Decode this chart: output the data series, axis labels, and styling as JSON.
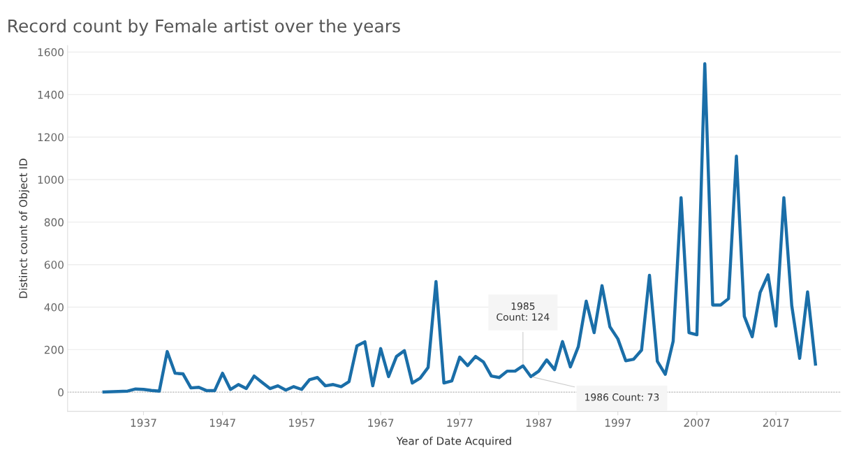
{
  "chart_data": {
    "type": "line",
    "title": "Record count by Female artist over the years",
    "xlabel": "Year of Date Acquired",
    "ylabel": "Distinct count of Object ID",
    "x": [
      1932,
      1935,
      1936,
      1937,
      1938,
      1939,
      1940,
      1941,
      1942,
      1943,
      1944,
      1945,
      1946,
      1947,
      1948,
      1949,
      1950,
      1951,
      1952,
      1953,
      1954,
      1955,
      1956,
      1957,
      1958,
      1959,
      1960,
      1961,
      1962,
      1963,
      1964,
      1965,
      1966,
      1967,
      1968,
      1969,
      1970,
      1971,
      1972,
      1973,
      1974,
      1975,
      1976,
      1977,
      1978,
      1979,
      1980,
      1981,
      1982,
      1983,
      1984,
      1985,
      1986,
      1987,
      1988,
      1989,
      1990,
      1991,
      1992,
      1993,
      1994,
      1995,
      1996,
      1997,
      1998,
      1999,
      2000,
      2001,
      2002,
      2003,
      2004,
      2005,
      2006,
      2007,
      2008,
      2009,
      2010,
      2011,
      2012,
      2013,
      2014,
      2015,
      2016,
      2017,
      2018,
      2019,
      2020,
      2021,
      2022
    ],
    "series": [
      {
        "color": "#1a6ea8",
        "values": [
          1,
          5,
          15,
          13,
          8,
          5,
          191,
          89,
          86,
          20,
          23,
          7,
          7,
          89,
          13,
          36,
          17,
          76,
          46,
          17,
          30,
          10,
          26,
          13,
          59,
          69,
          30,
          36,
          26,
          50,
          218,
          237,
          30,
          205,
          73,
          168,
          195,
          43,
          66,
          116,
          520,
          43,
          53,
          165,
          125,
          168,
          142,
          76,
          69,
          99,
          99,
          124,
          73,
          99,
          152,
          106,
          238,
          119,
          214,
          428,
          280,
          501,
          307,
          251,
          148,
          155,
          198,
          550,
          145,
          84,
          240,
          915,
          280,
          270,
          1545,
          410,
          410,
          440,
          1110,
          357,
          261,
          469,
          552,
          311,
          915,
          407,
          159,
          472,
          132
        ]
      }
    ],
    "xlim": [
      1927.4,
      2025.2
    ],
    "xticks": [
      1937,
      1947,
      1957,
      1967,
      1977,
      1987,
      1997,
      2007,
      2017
    ],
    "ylim": [
      -90,
      1630
    ],
    "yticks": [
      0,
      200,
      400,
      600,
      800,
      1000,
      1200,
      1400,
      1600
    ],
    "grid": "y",
    "marker": "none",
    "line_style": "solid",
    "ref_lines": [
      {
        "axis": "y",
        "value": 0,
        "color": "#bbbbbb",
        "line_style": "dotted"
      }
    ],
    "annotations": [
      {
        "text": "1985\nCount: 124",
        "x": 1985,
        "y": 124
      },
      {
        "text": "1986 Count: 73",
        "x": 1986,
        "y": 73
      }
    ]
  }
}
